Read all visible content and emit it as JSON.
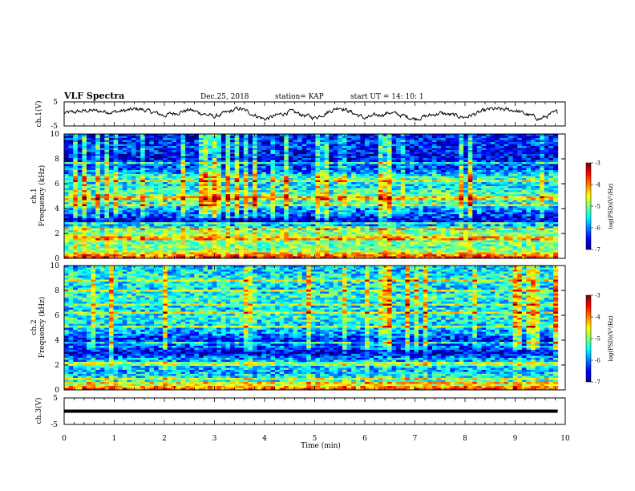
{
  "header": {
    "title": "VLF Spectra",
    "date": "Dec.25, 2018",
    "station": "station= KAP",
    "start": "start  UT =   14: 10: 1"
  },
  "chart_data": [
    {
      "type": "line",
      "ylabel": "ch.1(V)",
      "xlim": [
        0,
        10
      ],
      "ylim": [
        -5,
        5
      ],
      "yticks": [
        "5",
        "-5"
      ],
      "description_values": {
        "x": [
          0,
          0.5,
          1,
          1.5,
          2,
          2.5,
          3,
          3.5,
          4,
          4.5,
          5,
          5.5,
          6,
          6.5,
          7,
          7.5,
          8,
          8.5,
          9,
          9.5,
          9.85
        ],
        "y": [
          0.3,
          1.4,
          0.8,
          2.1,
          -0.6,
          1.7,
          -1.2,
          2.3,
          -2.2,
          1.0,
          -1.6,
          2.9,
          -1.8,
          0.6,
          -2.0,
          0.3,
          -1.4,
          2.0,
          1.5,
          -2.1,
          0.9
        ]
      },
      "line_color": "#000000"
    },
    {
      "type": "heatmap",
      "ylabel": "ch.1",
      "ylabel2": "Frequency (kHz)",
      "ylim": [
        0,
        10
      ],
      "yticks": [
        "0",
        "2",
        "4",
        "6",
        "8",
        "10"
      ],
      "colorbar": {
        "label": "log(PSD)(V²/Hz)",
        "ticks": [
          "-3",
          "-4",
          "-5",
          "-6",
          "-7"
        ],
        "range": [
          -7,
          -3
        ]
      },
      "freq_profile_khz": [
        0,
        0.3,
        0.6,
        1.0,
        1.5,
        2.0,
        2.5,
        3.0,
        3.5,
        4.0,
        4.5,
        5.0,
        5.5,
        6.0,
        6.5,
        7.0,
        7.5,
        8.0,
        8.5,
        9.0,
        9.5,
        10.0
      ],
      "freq_profile_logpsd": [
        -3.6,
        -4.2,
        -5.0,
        -5.1,
        -5.0,
        -4.9,
        -5.4,
        -6.7,
        -6.2,
        -5.8,
        -5.3,
        -5.1,
        -5.4,
        -5.6,
        -5.2,
        -6.1,
        -6.3,
        -6.6,
        -6.5,
        -6.3,
        -6.4,
        -6.5
      ]
    },
    {
      "type": "heatmap",
      "ylabel": "ch.2",
      "ylabel2": "Frequency (kHz)",
      "ylim": [
        0,
        10
      ],
      "yticks": [
        "0",
        "2",
        "4",
        "6",
        "8",
        "10"
      ],
      "colorbar": {
        "label": "log(PSD)(V²/Hz)",
        "ticks": [
          "-3",
          "-4",
          "-5",
          "-6",
          "-7"
        ],
        "range": [
          -7,
          -3
        ]
      },
      "freq_profile_khz": [
        0,
        0.3,
        0.6,
        1.0,
        1.5,
        2.0,
        2.5,
        3.0,
        3.5,
        4.0,
        4.5,
        5.0,
        5.5,
        6.0,
        6.5,
        7.0,
        7.5,
        8.0,
        8.5,
        9.0,
        9.5,
        10.0
      ],
      "freq_profile_logpsd": [
        -3.7,
        -4.3,
        -5.3,
        -5.5,
        -5.8,
        -5.6,
        -5.9,
        -6.7,
        -6.0,
        -6.5,
        -5.9,
        -5.7,
        -5.5,
        -5.4,
        -5.6,
        -5.5,
        -5.3,
        -5.6,
        -5.5,
        -5.4,
        -5.6,
        -5.7
      ]
    },
    {
      "type": "line",
      "ylabel": "ch.3(V)",
      "xlim": [
        0,
        10
      ],
      "ylim": [
        -5,
        5
      ],
      "yticks": [
        "5",
        "-5"
      ],
      "values": {
        "x": [
          0,
          9.85
        ],
        "y": [
          0,
          0
        ]
      },
      "line_color": "#000000"
    }
  ],
  "xaxis": {
    "label": "Time (min)",
    "ticks": [
      "0",
      "1",
      "2",
      "3",
      "4",
      "5",
      "6",
      "7",
      "8",
      "9",
      "10"
    ],
    "range": [
      0,
      10
    ]
  }
}
